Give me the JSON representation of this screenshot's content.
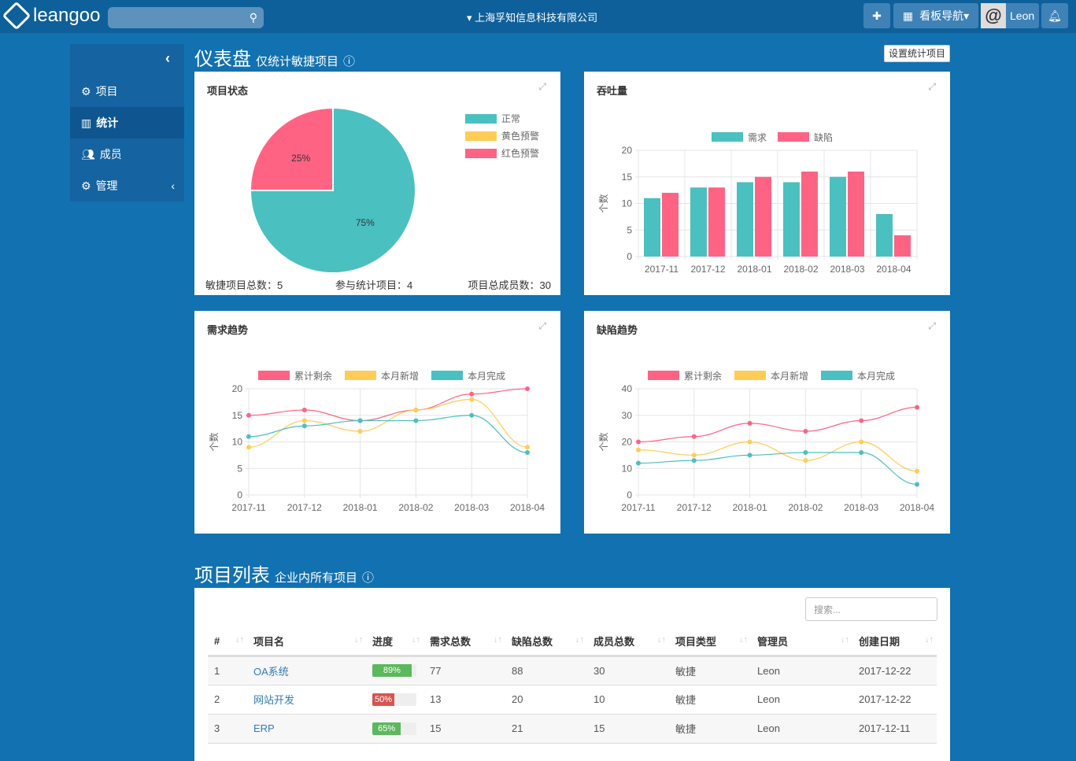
{
  "topbar": {
    "logo": "leangoo",
    "company": "上海孚知信息科技有限公司",
    "board_nav": "看板导航",
    "user": "Leon",
    "search_placeholder": ""
  },
  "sidebar": {
    "items": [
      {
        "label": "项目"
      },
      {
        "label": "统计"
      },
      {
        "label": "成员"
      },
      {
        "label": "管理"
      }
    ]
  },
  "dashboard": {
    "title": "仪表盘",
    "subtitle": "仅统计敏捷项目",
    "settings_button": "设置统计项目"
  },
  "colors": {
    "teal": "#4bc0c0",
    "pink": "#ff6384",
    "yellow": "#ffcd56"
  },
  "status_card": {
    "title": "项目状态",
    "legend": [
      "正常",
      "黄色预警",
      "红色预警"
    ],
    "footer": [
      "敏捷项目总数：5",
      "参与统计项目：4",
      "项目总成员数：30"
    ]
  },
  "chart_data": [
    {
      "type": "pie",
      "title": "项目状态",
      "labels": [
        "正常",
        "黄色预警",
        "红色预警"
      ],
      "values": [
        75,
        0,
        25
      ],
      "data_labels": [
        "75%",
        "",
        "25%"
      ]
    },
    {
      "type": "bar",
      "title": "吞吐量",
      "categories": [
        "2017-11",
        "2017-12",
        "2018-01",
        "2018-02",
        "2018-03",
        "2018-04"
      ],
      "series": [
        {
          "name": "需求",
          "values": [
            11,
            13,
            14,
            14,
            15,
            8
          ]
        },
        {
          "name": "缺陷",
          "values": [
            12,
            13,
            15,
            16,
            16,
            4
          ]
        }
      ],
      "ylabel": "个数",
      "ylim": [
        0,
        20
      ],
      "yticks": [
        0,
        5,
        10,
        15,
        20
      ]
    },
    {
      "type": "line",
      "title": "需求趋势",
      "categories": [
        "2017-11",
        "2017-12",
        "2018-01",
        "2018-02",
        "2018-03",
        "2018-04"
      ],
      "series": [
        {
          "name": "累计剩余",
          "values": [
            15,
            16,
            14,
            16,
            19,
            20
          ]
        },
        {
          "name": "本月新增",
          "values": [
            9,
            14,
            12,
            16,
            18,
            9
          ]
        },
        {
          "name": "本月完成",
          "values": [
            11,
            13,
            14,
            14,
            15,
            8
          ]
        }
      ],
      "ylabel": "个数",
      "ylim": [
        0,
        20
      ],
      "yticks": [
        0,
        5,
        10,
        15,
        20
      ]
    },
    {
      "type": "line",
      "title": "缺陷趋势",
      "categories": [
        "2017-11",
        "2017-12",
        "2018-01",
        "2018-02",
        "2018-03",
        "2018-04"
      ],
      "series": [
        {
          "name": "累计剩余",
          "values": [
            20,
            22,
            27,
            24,
            28,
            33
          ]
        },
        {
          "name": "本月新增",
          "values": [
            17,
            15,
            20,
            13,
            20,
            9
          ]
        },
        {
          "name": "本月完成",
          "values": [
            12,
            13,
            15,
            16,
            16,
            4
          ]
        }
      ],
      "ylabel": "个数",
      "ylim": [
        0,
        40
      ],
      "yticks": [
        0,
        10,
        20,
        30,
        40
      ]
    }
  ],
  "projects": {
    "title": "项目列表",
    "subtitle": "企业内所有项目",
    "search_placeholder": "搜索...",
    "columns": [
      "#",
      "项目名",
      "进度",
      "需求总数",
      "缺陷总数",
      "成员总数",
      "项目类型",
      "管理员",
      "创建日期"
    ],
    "rows": [
      {
        "no": "1",
        "name": "OA系统",
        "progress": 89,
        "progress_label": "89%",
        "req": "77",
        "bug": "88",
        "members": "30",
        "type": "敏捷",
        "admin": "Leon",
        "date": "2017-12-22"
      },
      {
        "no": "2",
        "name": "网站开发",
        "progress": 50,
        "progress_label": "50%",
        "req": "13",
        "bug": "20",
        "members": "10",
        "type": "敏捷",
        "admin": "Leon",
        "date": "2017-12-22"
      },
      {
        "no": "3",
        "name": "ERP",
        "progress": 65,
        "progress_label": "65%",
        "req": "15",
        "bug": "21",
        "members": "15",
        "type": "敏捷",
        "admin": "Leon",
        "date": "2017-12-11"
      }
    ]
  }
}
